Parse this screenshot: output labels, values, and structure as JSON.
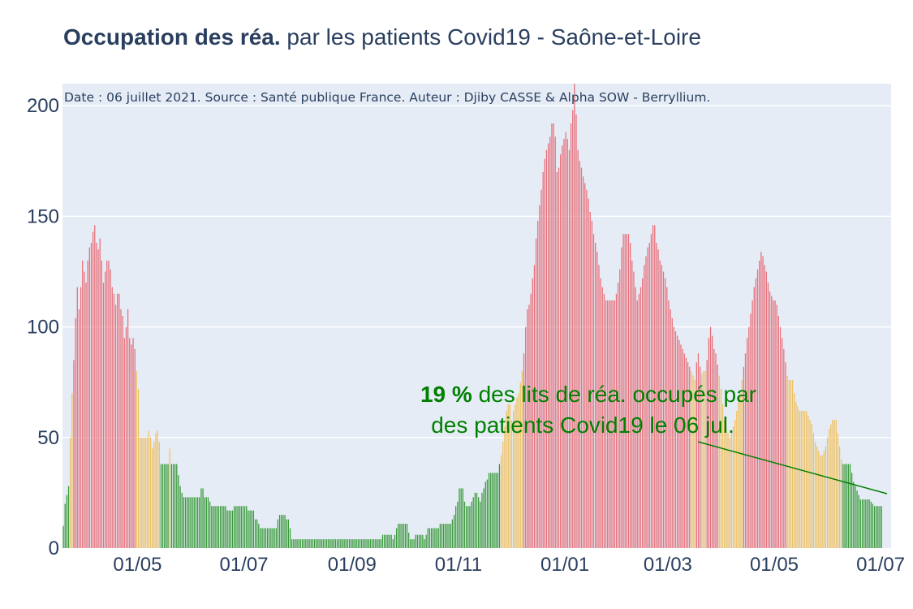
{
  "title": {
    "bold": "Occupation des réa.",
    "rest": "par les patients Covid19 - Saône-et-Loire"
  },
  "chart_data": {
    "type": "bar",
    "title": "Occupation des réa. par les patients Covid19 - Saône-et-Loire",
    "xlabel": "",
    "ylabel": "",
    "ylim": [
      0,
      210
    ],
    "x_range": [
      "2020-03-19",
      "2021-07-06"
    ],
    "yticks": [
      0,
      50,
      100,
      150,
      200
    ],
    "xticks": [
      {
        "date": "2020-05-01",
        "label": "01/05"
      },
      {
        "date": "2020-07-01",
        "label": "01/07"
      },
      {
        "date": "2020-09-01",
        "label": "01/09"
      },
      {
        "date": "2020-11-01",
        "label": "01/11"
      },
      {
        "date": "2021-01-01",
        "label": "01/01"
      },
      {
        "date": "2021-03-01",
        "label": "01/03"
      },
      {
        "date": "2021-05-01",
        "label": "01/05"
      },
      {
        "date": "2021-07-01",
        "label": "01/07"
      }
    ],
    "grid": true,
    "color_thresholds": {
      "green": "#3a9a3a",
      "orange": "#f0c060",
      "red": "#e8707a",
      "green_below": 40,
      "red_above": 80
    },
    "series": [
      {
        "start_date": "2020-03-19",
        "values": [
          10,
          20,
          24,
          28,
          50,
          70,
          85,
          104,
          118,
          108,
          118,
          130,
          125,
          120,
          130,
          136,
          138,
          143,
          146,
          138,
          135,
          140,
          130,
          120,
          125,
          130,
          130,
          126,
          118,
          115,
          110,
          115,
          115,
          108,
          105,
          95,
          100,
          108,
          95,
          92,
          95,
          90,
          80,
          72,
          50,
          50,
          50,
          50,
          50,
          53,
          50,
          45,
          48,
          52,
          53,
          48,
          38,
          38,
          38,
          38,
          38,
          45,
          38,
          38,
          38,
          38,
          33,
          28,
          25,
          23,
          23,
          23,
          23,
          23,
          23,
          23,
          23,
          23,
          23,
          27,
          27,
          23,
          23,
          23,
          21,
          19,
          19,
          19,
          19,
          19,
          19,
          19,
          19,
          19,
          17,
          17,
          17,
          17,
          19,
          19,
          19,
          19,
          19,
          19,
          19,
          19,
          17,
          17,
          17,
          17,
          13,
          13,
          11,
          9,
          9,
          9,
          9,
          9,
          9,
          9,
          9,
          9,
          9,
          13,
          15,
          15,
          15,
          15,
          13,
          13,
          9,
          4,
          4,
          4,
          4,
          4,
          4,
          4,
          4,
          4,
          4,
          4,
          4,
          4,
          4,
          4,
          4,
          4,
          4,
          4,
          4,
          4,
          4,
          4,
          4,
          4,
          4,
          4,
          4,
          4,
          4,
          4,
          4,
          4,
          4,
          4,
          4,
          4,
          4,
          4,
          4,
          4,
          4,
          4,
          4,
          4,
          4,
          4,
          4,
          4,
          4,
          4,
          4,
          6,
          6,
          6,
          6,
          6,
          6,
          4,
          6,
          9,
          11,
          11,
          11,
          11,
          11,
          11,
          7,
          4,
          4,
          4,
          6,
          6,
          6,
          6,
          6,
          4,
          6,
          9,
          9,
          9,
          9,
          9,
          9,
          9,
          11,
          11,
          11,
          11,
          11,
          11,
          11,
          13,
          15,
          19,
          21,
          27,
          27,
          27,
          21,
          19,
          19,
          19,
          21,
          23,
          25,
          25,
          23,
          21,
          25,
          27,
          30,
          31,
          34,
          34,
          34,
          34,
          34,
          34,
          38,
          42,
          48,
          55,
          62,
          65,
          65,
          58,
          62,
          65,
          68,
          70,
          75,
          80,
          88,
          100,
          108,
          110,
          115,
          122,
          128,
          140,
          148,
          155,
          162,
          170,
          176,
          180,
          183,
          186,
          192,
          192,
          186,
          170,
          172,
          178,
          182,
          185,
          188,
          185,
          180,
          192,
          198,
          210,
          196,
          180,
          175,
          172,
          168,
          165,
          162,
          158,
          152,
          148,
          142,
          138,
          134,
          128,
          122,
          118,
          115,
          112,
          112,
          112,
          112,
          112,
          112,
          115,
          120,
          126,
          136,
          142,
          142,
          142,
          142,
          138,
          130,
          125,
          118,
          112,
          115,
          118,
          122,
          128,
          132,
          136,
          138,
          142,
          146,
          146,
          138,
          135,
          130,
          128,
          125,
          122,
          118,
          112,
          108,
          104,
          100,
          98,
          96,
          94,
          92,
          90,
          88,
          86,
          84,
          82,
          80,
          78,
          76,
          84,
          88,
          82,
          79,
          80,
          80,
          85,
          95,
          100,
          96,
          90,
          88,
          83,
          78,
          72,
          65,
          58,
          54,
          52,
          50,
          52,
          55,
          58,
          62,
          66,
          70,
          76,
          82,
          88,
          95,
          100,
          106,
          112,
          118,
          122,
          126,
          130,
          134,
          132,
          128,
          125,
          120,
          116,
          114,
          112,
          112,
          110,
          105,
          100,
          95,
          90,
          84,
          78,
          76,
          76,
          76,
          70,
          66,
          64,
          62,
          62,
          62,
          62,
          62,
          60,
          58,
          56,
          52,
          48,
          46,
          44,
          42,
          42,
          44,
          46,
          50,
          54,
          56,
          58,
          58,
          58,
          52,
          46,
          40,
          38,
          38,
          38,
          38,
          38,
          34,
          30,
          28,
          26,
          24,
          22,
          22,
          22,
          22,
          22,
          22,
          21,
          20,
          19,
          19,
          19,
          19,
          19
        ]
      }
    ],
    "annotations": [
      {
        "text": "Date : 06 juillet 2021. Source : Santé publique France. Auteur : Djiby CASSE & Alpha SOW - Berryllium."
      },
      {
        "bold": "19  %",
        "line1": "des lits de réa. occupés par",
        "line2": "des patients Covid19 le 06 jul."
      }
    ]
  }
}
